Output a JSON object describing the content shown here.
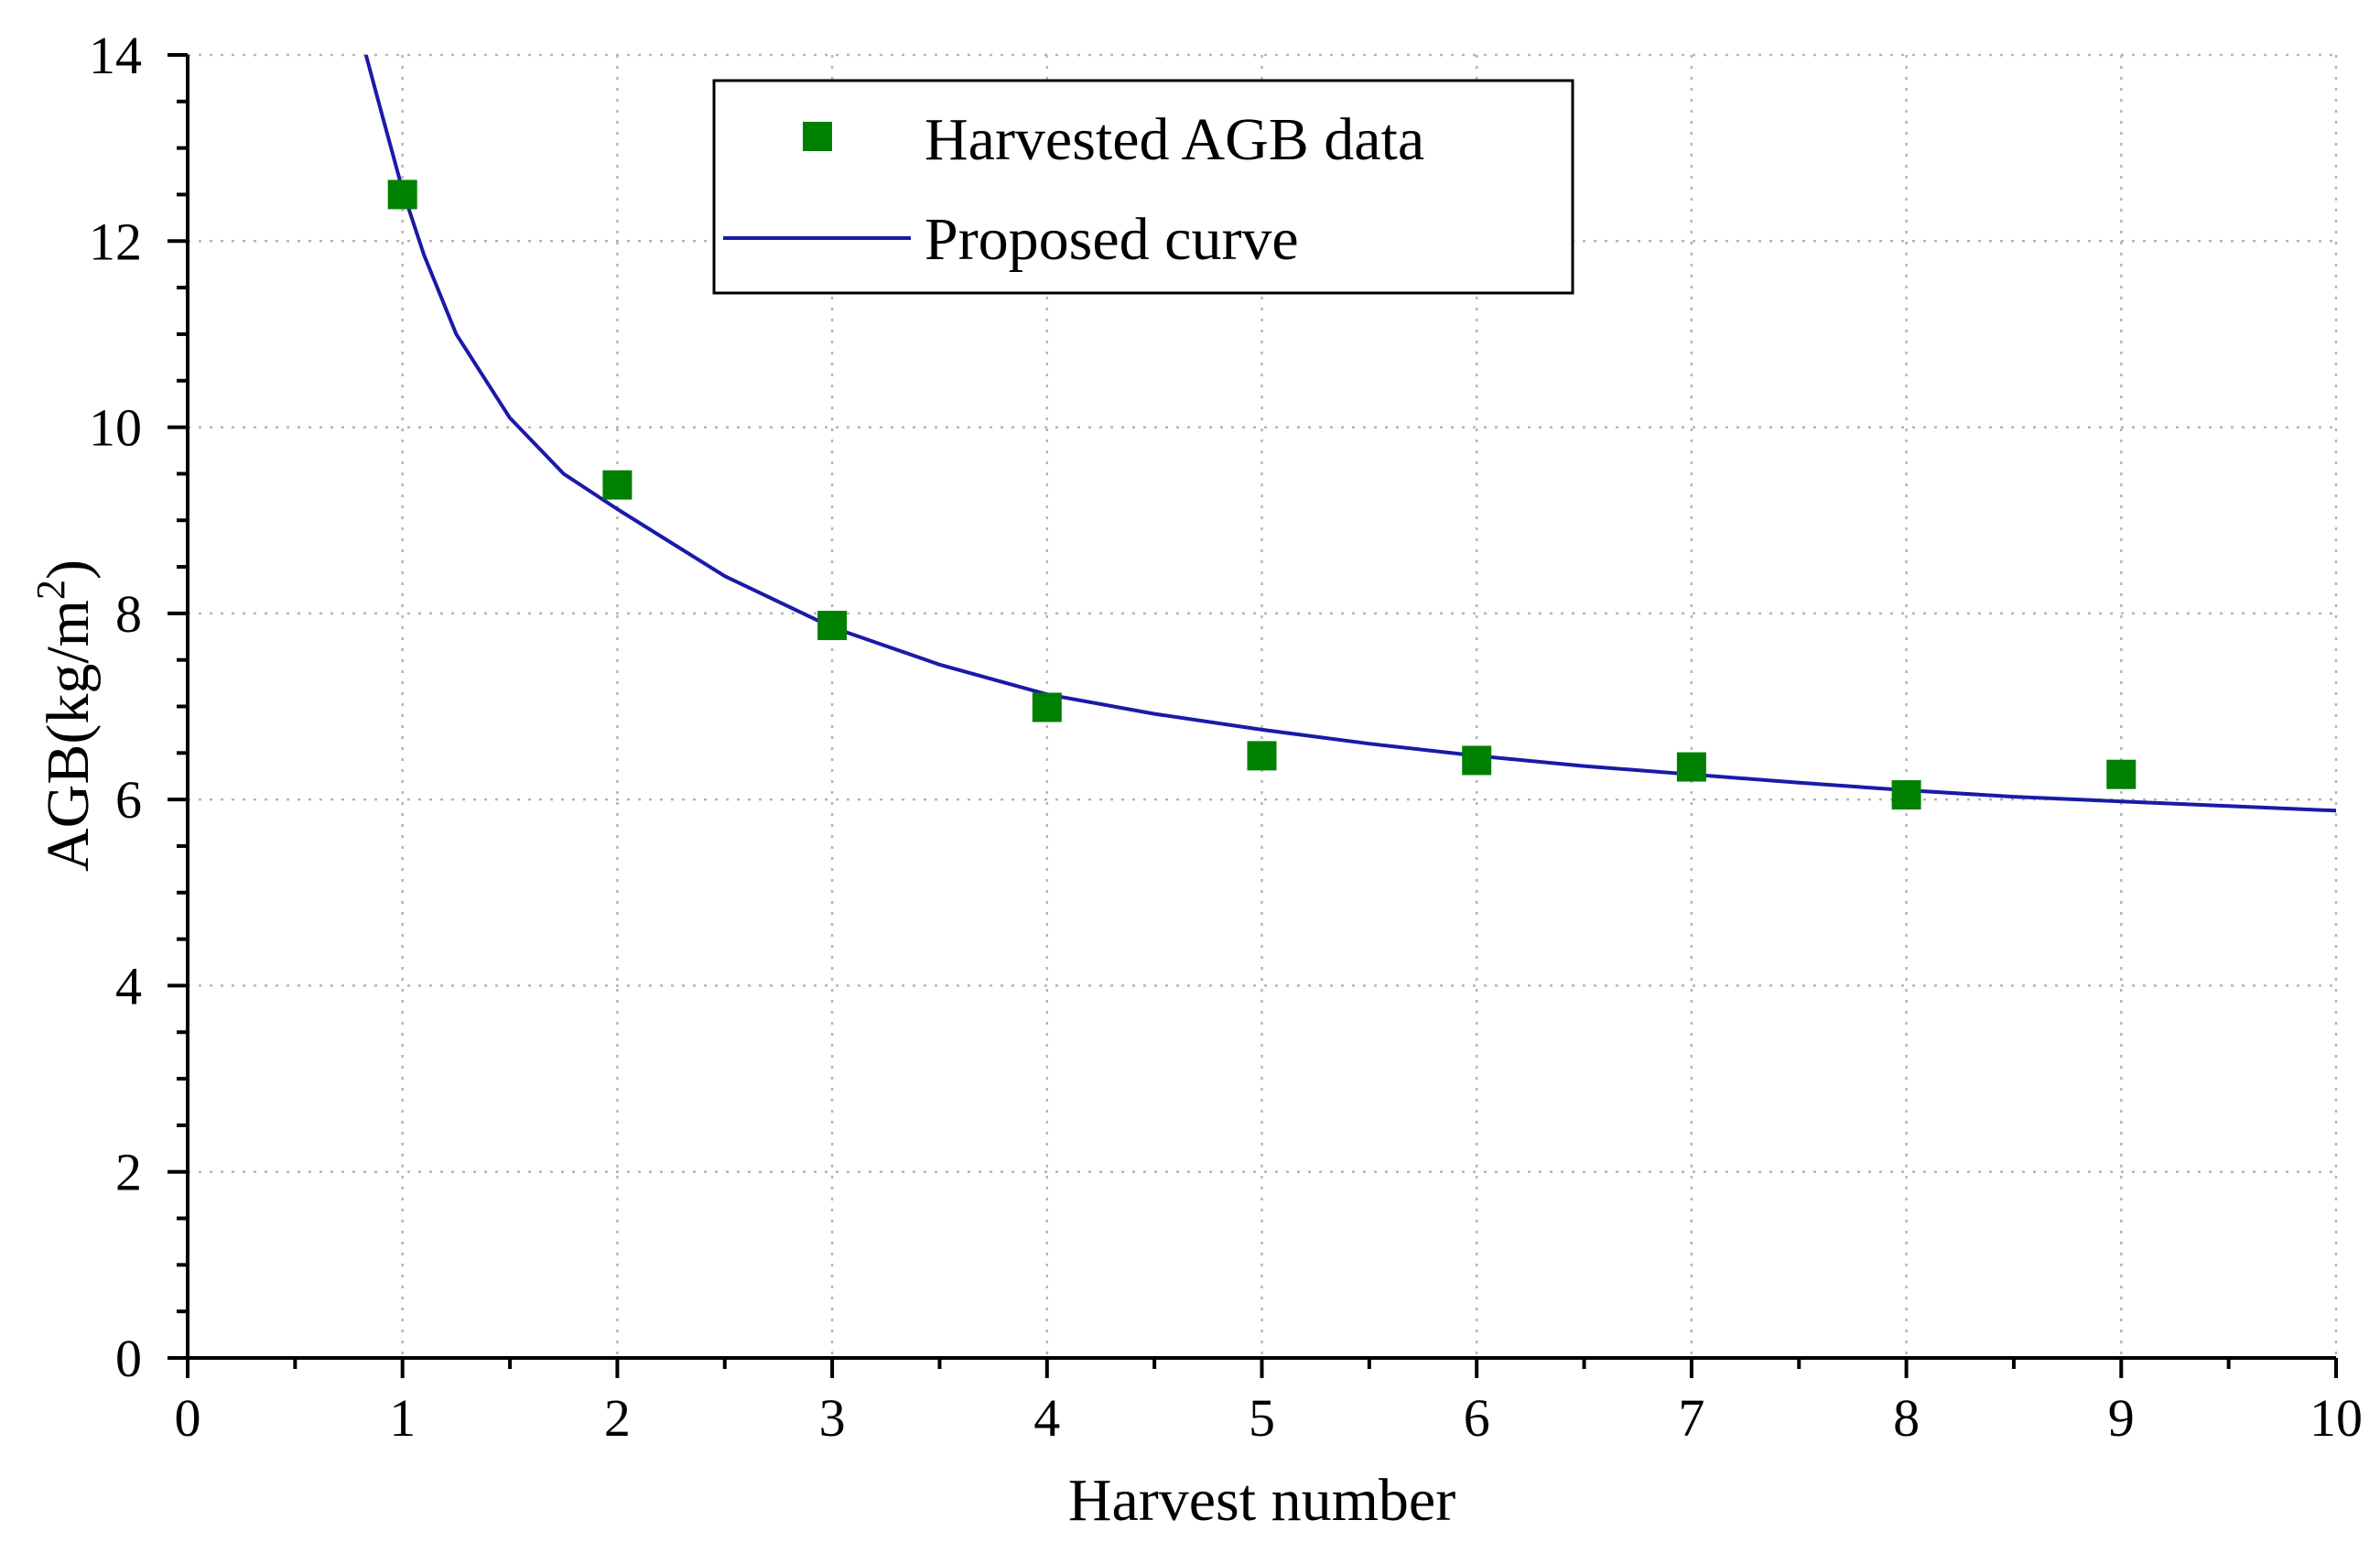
{
  "chart_data": {
    "type": "scatter",
    "title": "",
    "xlabel": "Harvest number",
    "ylabel": "AGB(kg/m",
    "ylabel_superscript": "2",
    "ylabel_close": ")",
    "xlim": [
      0,
      10
    ],
    "ylim": [
      0,
      14
    ],
    "xticks": [
      0,
      1,
      2,
      3,
      4,
      5,
      6,
      7,
      8,
      9,
      10
    ],
    "yticks": [
      0,
      2,
      4,
      6,
      8,
      10,
      12,
      14
    ],
    "grid": true,
    "legend_position": "top-center",
    "series": [
      {
        "name": "Harvested AGB data",
        "kind": "scatter",
        "marker": "square",
        "color": "#008000",
        "x": [
          1,
          2,
          3,
          4,
          5,
          6,
          7,
          8,
          9
        ],
        "y": [
          12.5,
          9.38,
          7.87,
          6.99,
          6.47,
          6.42,
          6.35,
          6.05,
          6.27
        ]
      },
      {
        "name": "Proposed curve",
        "kind": "line",
        "color": "#1a1aa8",
        "x": [
          0.83,
          0.9,
          1,
          1.1,
          1.25,
          1.5,
          1.75,
          2,
          2.5,
          3,
          3.5,
          4,
          4.5,
          5,
          5.5,
          6,
          6.5,
          7,
          7.5,
          8,
          8.5,
          9,
          9.5,
          10
        ],
        "y": [
          14.0,
          13.4,
          12.55,
          11.85,
          11.0,
          10.1,
          9.5,
          9.12,
          8.4,
          7.85,
          7.45,
          7.13,
          6.92,
          6.75,
          6.6,
          6.47,
          6.36,
          6.27,
          6.18,
          6.1,
          6.03,
          5.98,
          5.93,
          5.88
        ]
      }
    ]
  }
}
